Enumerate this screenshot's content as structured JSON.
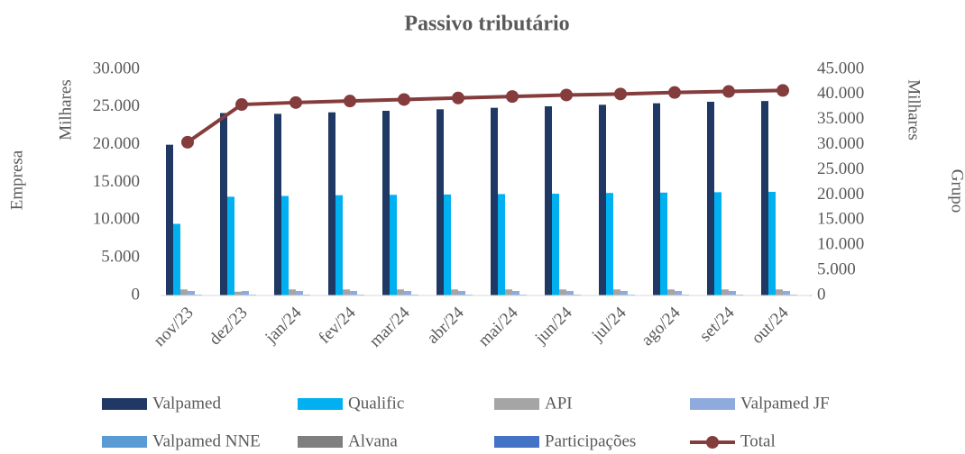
{
  "chart_data": {
    "type": "bar-line",
    "title": "Passivo tributário",
    "y_label": "Empresa",
    "y_unit": "Milhares",
    "y2_label": "Grupo",
    "y2_unit": "Milhares",
    "categories": [
      "nov/23",
      "dez/23",
      "jan/24",
      "fev/24",
      "mar/24",
      "abr/24",
      "mai/24",
      "jun/24",
      "jul/24",
      "ago/24",
      "set/24",
      "out/24"
    ],
    "ylim": [
      0,
      30000
    ],
    "yticks": [
      {
        "value": 0,
        "label": "0"
      },
      {
        "value": 5000,
        "label": "5.000"
      },
      {
        "value": 10000,
        "label": "10.000"
      },
      {
        "value": 15000,
        "label": "15.000"
      },
      {
        "value": 20000,
        "label": "20.000"
      },
      {
        "value": 25000,
        "label": "25.000"
      },
      {
        "value": 30000,
        "label": "30.000"
      }
    ],
    "y2lim": [
      0,
      45000
    ],
    "y2ticks": [
      {
        "value": 0,
        "label": "0"
      },
      {
        "value": 5000,
        "label": "5.000"
      },
      {
        "value": 10000,
        "label": "10.000"
      },
      {
        "value": 15000,
        "label": "15.000"
      },
      {
        "value": 20000,
        "label": "20.000"
      },
      {
        "value": 25000,
        "label": "25.000"
      },
      {
        "value": 30000,
        "label": "30.000"
      },
      {
        "value": 35000,
        "label": "35.000"
      },
      {
        "value": 40000,
        "label": "40.000"
      },
      {
        "value": 45000,
        "label": "45.000"
      }
    ],
    "series": [
      {
        "name": "Valpamed",
        "color": "#1f3864",
        "kind": "bar",
        "values": [
          20000,
          24200,
          24100,
          24300,
          24500,
          24700,
          24900,
          25100,
          25300,
          25500,
          25700,
          25800
        ]
      },
      {
        "name": "Qualific",
        "color": "#00b0f0",
        "kind": "bar",
        "values": [
          9500,
          13100,
          13200,
          13300,
          13350,
          13400,
          13450,
          13500,
          13600,
          13650,
          13700,
          13750
        ]
      },
      {
        "name": "API",
        "color": "#a5a5a5",
        "kind": "bar",
        "values": [
          800,
          500,
          800,
          800,
          800,
          800,
          800,
          800,
          800,
          800,
          800,
          800
        ]
      },
      {
        "name": "Valpamed JF",
        "color": "#8faadc",
        "kind": "bar",
        "values": [
          600,
          600,
          600,
          600,
          600,
          600,
          600,
          600,
          600,
          600,
          600,
          600
        ]
      },
      {
        "name": "Valpamed NNE",
        "color": "#5b9bd5",
        "kind": "bar",
        "values": [
          100,
          100,
          100,
          100,
          100,
          100,
          100,
          100,
          100,
          100,
          100,
          100
        ]
      },
      {
        "name": "Alvana",
        "color": "#7f7f7f",
        "kind": "bar",
        "values": [
          50,
          50,
          50,
          50,
          50,
          50,
          50,
          50,
          50,
          50,
          50,
          50
        ]
      },
      {
        "name": "Participações",
        "color": "#4472c4",
        "kind": "bar",
        "values": [
          20,
          20,
          20,
          20,
          20,
          20,
          20,
          20,
          20,
          20,
          20,
          20
        ]
      },
      {
        "name": "Total",
        "color": "#843c3c",
        "kind": "line",
        "axis": "y2",
        "values": [
          30500,
          38000,
          38400,
          38700,
          39000,
          39300,
          39600,
          39900,
          40100,
          40400,
          40600,
          40800
        ]
      }
    ]
  }
}
